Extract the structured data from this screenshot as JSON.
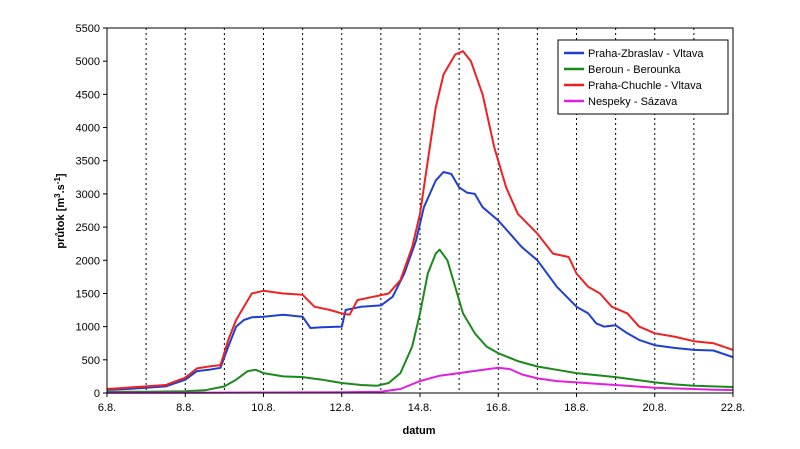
{
  "chart_data": {
    "type": "line",
    "xlabel": "datum",
    "ylabel_main": "průtok [m",
    "ylabel_sup1": "3",
    "ylabel_mid": ".s",
    "ylabel_sup2": "-1",
    "ylabel_end": "]",
    "ylim": [
      0,
      5500
    ],
    "yticks": [
      0,
      500,
      1000,
      1500,
      2000,
      2500,
      3000,
      3500,
      4000,
      4500,
      5000,
      5500
    ],
    "xlim": [
      6,
      22
    ],
    "xticks": [
      {
        "x": 6,
        "label": "6.8."
      },
      {
        "x": 8,
        "label": "8.8."
      },
      {
        "x": 10,
        "label": "10.8."
      },
      {
        "x": 12,
        "label": "12.8."
      },
      {
        "x": 14,
        "label": "14.8."
      },
      {
        "x": 16,
        "label": "16.8."
      },
      {
        "x": 18,
        "label": "18.8."
      },
      {
        "x": 20,
        "label": "20.8."
      },
      {
        "x": 22,
        "label": "22.8."
      }
    ],
    "gridlines_x": [
      7,
      8,
      9,
      10,
      11,
      12,
      13,
      14,
      15,
      16,
      17,
      18,
      19,
      20,
      21
    ],
    "legend_position": "top-right",
    "series": [
      {
        "name": "Praha-Zbraslav - Vltava",
        "color": "#1f3fd1",
        "points": [
          [
            6,
            50
          ],
          [
            6.5,
            60
          ],
          [
            7,
            80
          ],
          [
            7.5,
            100
          ],
          [
            8,
            200
          ],
          [
            8.3,
            330
          ],
          [
            8.6,
            350
          ],
          [
            8.9,
            380
          ],
          [
            9.1,
            700
          ],
          [
            9.3,
            1000
          ],
          [
            9.5,
            1100
          ],
          [
            9.7,
            1140
          ],
          [
            10,
            1150
          ],
          [
            10.5,
            1180
          ],
          [
            11,
            1150
          ],
          [
            11.2,
            980
          ],
          [
            11.5,
            990
          ],
          [
            12,
            1000
          ],
          [
            12.1,
            1250
          ],
          [
            12.5,
            1300
          ],
          [
            13,
            1320
          ],
          [
            13.3,
            1450
          ],
          [
            13.6,
            1800
          ],
          [
            13.9,
            2300
          ],
          [
            14.1,
            2800
          ],
          [
            14.4,
            3200
          ],
          [
            14.6,
            3330
          ],
          [
            14.8,
            3300
          ],
          [
            15,
            3100
          ],
          [
            15.2,
            3020
          ],
          [
            15.4,
            3000
          ],
          [
            15.6,
            2800
          ],
          [
            16,
            2600
          ],
          [
            16.3,
            2400
          ],
          [
            16.6,
            2200
          ],
          [
            17,
            2000
          ],
          [
            17.5,
            1600
          ],
          [
            18,
            1300
          ],
          [
            18.3,
            1200
          ],
          [
            18.5,
            1050
          ],
          [
            18.7,
            1000
          ],
          [
            19,
            1020
          ],
          [
            19.3,
            900
          ],
          [
            19.6,
            800
          ],
          [
            20,
            720
          ],
          [
            20.5,
            680
          ],
          [
            21,
            650
          ],
          [
            21.5,
            640
          ],
          [
            22,
            540
          ]
        ]
      },
      {
        "name": "Beroun - Berounka",
        "color": "#1a8a1a",
        "points": [
          [
            6,
            20
          ],
          [
            7,
            20
          ],
          [
            8,
            25
          ],
          [
            8.5,
            40
          ],
          [
            9,
            100
          ],
          [
            9.3,
            200
          ],
          [
            9.6,
            330
          ],
          [
            9.8,
            350
          ],
          [
            10,
            300
          ],
          [
            10.5,
            250
          ],
          [
            11,
            240
          ],
          [
            11.5,
            200
          ],
          [
            12,
            150
          ],
          [
            12.5,
            120
          ],
          [
            12.9,
            110
          ],
          [
            13.2,
            150
          ],
          [
            13.5,
            300
          ],
          [
            13.8,
            700
          ],
          [
            14,
            1200
          ],
          [
            14.2,
            1800
          ],
          [
            14.4,
            2100
          ],
          [
            14.5,
            2160
          ],
          [
            14.7,
            2000
          ],
          [
            14.9,
            1600
          ],
          [
            15.1,
            1200
          ],
          [
            15.4,
            900
          ],
          [
            15.7,
            700
          ],
          [
            16,
            600
          ],
          [
            16.5,
            480
          ],
          [
            17,
            400
          ],
          [
            17.5,
            350
          ],
          [
            18,
            300
          ],
          [
            18.5,
            270
          ],
          [
            19,
            240
          ],
          [
            19.5,
            200
          ],
          [
            20,
            160
          ],
          [
            20.5,
            130
          ],
          [
            21,
            110
          ],
          [
            21.5,
            100
          ],
          [
            22,
            90
          ]
        ]
      },
      {
        "name": "Praha-Chuchle - Vltava",
        "color": "#ee2222",
        "points": [
          [
            6,
            60
          ],
          [
            6.5,
            80
          ],
          [
            7,
            100
          ],
          [
            7.5,
            120
          ],
          [
            8,
            230
          ],
          [
            8.3,
            370
          ],
          [
            8.6,
            400
          ],
          [
            8.9,
            420
          ],
          [
            9.1,
            800
          ],
          [
            9.3,
            1100
          ],
          [
            9.5,
            1300
          ],
          [
            9.7,
            1500
          ],
          [
            10,
            1540
          ],
          [
            10.5,
            1500
          ],
          [
            11,
            1480
          ],
          [
            11.3,
            1300
          ],
          [
            11.7,
            1250
          ],
          [
            12,
            1200
          ],
          [
            12.2,
            1180
          ],
          [
            12.4,
            1400
          ],
          [
            12.8,
            1450
          ],
          [
            13.2,
            1500
          ],
          [
            13.5,
            1700
          ],
          [
            13.8,
            2200
          ],
          [
            14,
            2700
          ],
          [
            14.2,
            3500
          ],
          [
            14.4,
            4300
          ],
          [
            14.6,
            4800
          ],
          [
            14.9,
            5100
          ],
          [
            15.1,
            5150
          ],
          [
            15.3,
            5000
          ],
          [
            15.6,
            4500
          ],
          [
            15.9,
            3700
          ],
          [
            16.2,
            3100
          ],
          [
            16.5,
            2700
          ],
          [
            17,
            2400
          ],
          [
            17.4,
            2100
          ],
          [
            17.8,
            2050
          ],
          [
            18,
            1800
          ],
          [
            18.3,
            1600
          ],
          [
            18.6,
            1500
          ],
          [
            18.9,
            1300
          ],
          [
            19.3,
            1200
          ],
          [
            19.6,
            1000
          ],
          [
            20,
            900
          ],
          [
            20.5,
            850
          ],
          [
            21,
            780
          ],
          [
            21.5,
            750
          ],
          [
            22,
            650
          ]
        ]
      },
      {
        "name": "Nespeky - Sázava",
        "color": "#e020e0",
        "points": [
          [
            6,
            5
          ],
          [
            8,
            5
          ],
          [
            10,
            8
          ],
          [
            12,
            10
          ],
          [
            13,
            20
          ],
          [
            13.5,
            60
          ],
          [
            14,
            180
          ],
          [
            14.5,
            260
          ],
          [
            15,
            300
          ],
          [
            15.5,
            340
          ],
          [
            16,
            380
          ],
          [
            16.3,
            360
          ],
          [
            16.6,
            280
          ],
          [
            17,
            220
          ],
          [
            17.5,
            180
          ],
          [
            18,
            160
          ],
          [
            18.5,
            140
          ],
          [
            19,
            120
          ],
          [
            19.5,
            100
          ],
          [
            20,
            80
          ],
          [
            20.5,
            70
          ],
          [
            21,
            60
          ],
          [
            21.5,
            50
          ],
          [
            22,
            45
          ]
        ]
      }
    ]
  }
}
